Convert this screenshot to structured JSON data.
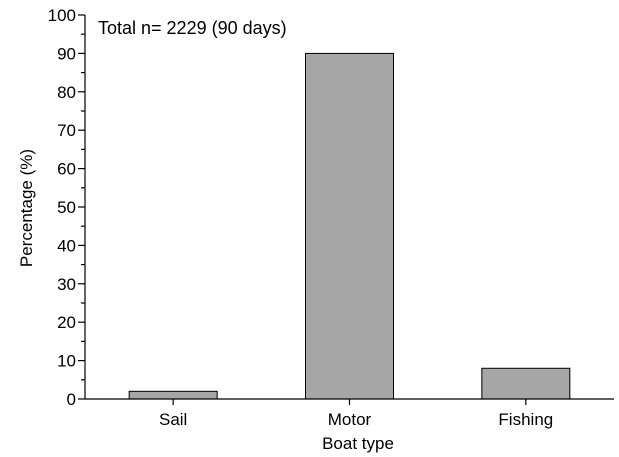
{
  "chart_data": {
    "type": "bar",
    "annotation": "Total n= 2229 (90 days)",
    "categories": [
      "Sail",
      "Motor",
      "Fishing"
    ],
    "values": [
      2,
      90,
      8
    ],
    "xlabel": "Boat type",
    "ylabel": "Percentage (%)",
    "ylim": [
      0,
      100
    ],
    "yticks": [
      0,
      10,
      20,
      30,
      40,
      50,
      60,
      70,
      80,
      90,
      100
    ],
    "grid": false,
    "legend": "none",
    "bar_color": "#a6a6a6"
  }
}
